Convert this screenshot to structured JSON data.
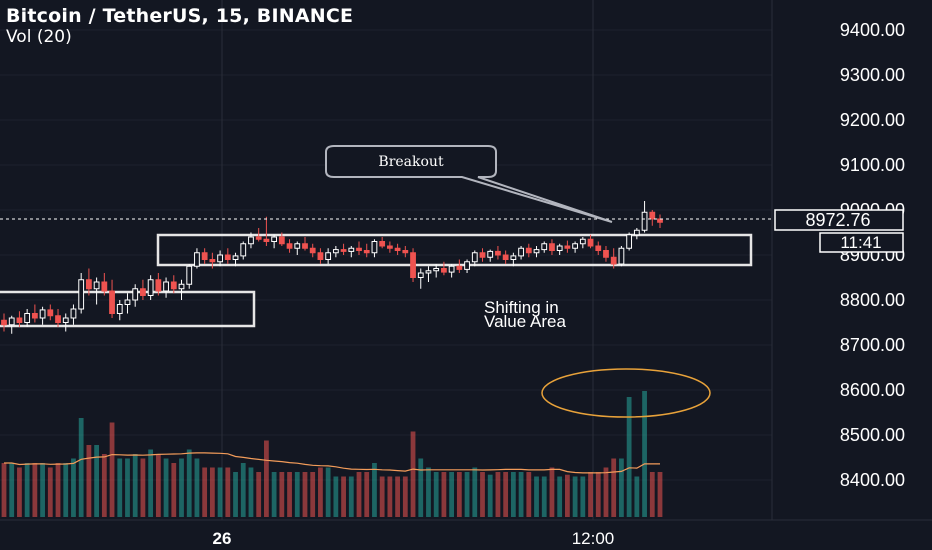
{
  "header": {
    "symbol_title": "Bitcoin / TetherUS, 15, BINANCE",
    "volume_label": "Vol (20)"
  },
  "price_axis": {
    "ticks": [
      "9400.00",
      "9300.00",
      "9200.00",
      "9100.00",
      "9000.00",
      "8900.00",
      "8800.00",
      "8700.00",
      "8600.00",
      "8500.00",
      "8400.00"
    ],
    "current_price": "8972.76",
    "countdown": "11:41"
  },
  "time_axis": {
    "ticks": [
      "26",
      "12:00"
    ]
  },
  "annotations": {
    "callout_text": "Breakout",
    "note_text": [
      "Shifting in",
      "Value Area"
    ]
  },
  "colors": {
    "background": "#131722",
    "bull": "#ffffff",
    "bear": "#ef5350",
    "vol_bull": "#26a69a",
    "vol_bear": "#ef5350",
    "ma_line": "#f39c5a",
    "ellipse": "#e8a23a"
  },
  "chart_data": {
    "type": "candlestick",
    "ylim": [
      8310,
      9440
    ],
    "current_price": 8972.76,
    "candles_ohlc": [
      [
        8755,
        8770,
        8730,
        8745
      ],
      [
        8745,
        8765,
        8725,
        8760
      ],
      [
        8760,
        8775,
        8740,
        8750
      ],
      [
        8750,
        8780,
        8740,
        8770
      ],
      [
        8770,
        8790,
        8750,
        8760
      ],
      [
        8760,
        8785,
        8745,
        8778
      ],
      [
        8778,
        8790,
        8755,
        8765
      ],
      [
        8765,
        8780,
        8740,
        8750
      ],
      [
        8750,
        8770,
        8730,
        8760
      ],
      [
        8760,
        8790,
        8745,
        8780
      ],
      [
        8780,
        8860,
        8770,
        8845
      ],
      [
        8845,
        8870,
        8810,
        8825
      ],
      [
        8825,
        8850,
        8790,
        8840
      ],
      [
        8840,
        8860,
        8810,
        8820
      ],
      [
        8820,
        8845,
        8760,
        8770
      ],
      [
        8770,
        8800,
        8755,
        8790
      ],
      [
        8790,
        8815,
        8770,
        8800
      ],
      [
        8800,
        8835,
        8785,
        8825
      ],
      [
        8825,
        8845,
        8800,
        8810
      ],
      [
        8810,
        8855,
        8800,
        8845
      ],
      [
        8845,
        8860,
        8810,
        8820
      ],
      [
        8820,
        8850,
        8805,
        8840
      ],
      [
        8840,
        8855,
        8815,
        8825
      ],
      [
        8825,
        8845,
        8800,
        8835
      ],
      [
        8835,
        8880,
        8825,
        8875
      ],
      [
        8875,
        8915,
        8870,
        8905
      ],
      [
        8905,
        8915,
        8880,
        8890
      ],
      [
        8890,
        8905,
        8870,
        8885
      ],
      [
        8885,
        8910,
        8875,
        8900
      ],
      [
        8900,
        8915,
        8880,
        8890
      ],
      [
        8890,
        8905,
        8875,
        8898
      ],
      [
        8898,
        8930,
        8890,
        8925
      ],
      [
        8925,
        8950,
        8915,
        8940
      ],
      [
        8940,
        8960,
        8930,
        8935
      ],
      [
        8935,
        8985,
        8920,
        8930
      ],
      [
        8930,
        8945,
        8915,
        8940
      ],
      [
        8940,
        8950,
        8920,
        8925
      ],
      [
        8925,
        8935,
        8905,
        8915
      ],
      [
        8915,
        8930,
        8900,
        8925
      ],
      [
        8925,
        8940,
        8910,
        8915
      ],
      [
        8915,
        8925,
        8895,
        8905
      ],
      [
        8905,
        8915,
        8880,
        8890
      ],
      [
        8890,
        8915,
        8880,
        8905
      ],
      [
        8905,
        8920,
        8895,
        8912
      ],
      [
        8912,
        8925,
        8900,
        8908
      ],
      [
        8908,
        8920,
        8895,
        8915
      ],
      [
        8915,
        8930,
        8900,
        8910
      ],
      [
        8910,
        8925,
        8895,
        8905
      ],
      [
        8905,
        8935,
        8895,
        8930
      ],
      [
        8930,
        8940,
        8915,
        8920
      ],
      [
        8920,
        8930,
        8905,
        8915
      ],
      [
        8915,
        8925,
        8900,
        8910
      ],
      [
        8910,
        8920,
        8895,
        8905
      ],
      [
        8905,
        8915,
        8840,
        8850
      ],
      [
        8850,
        8870,
        8825,
        8860
      ],
      [
        8860,
        8875,
        8840,
        8865
      ],
      [
        8865,
        8880,
        8850,
        8870
      ],
      [
        8870,
        8885,
        8855,
        8862
      ],
      [
        8862,
        8880,
        8850,
        8875
      ],
      [
        8875,
        8890,
        8860,
        8868
      ],
      [
        8868,
        8890,
        8860,
        8885
      ],
      [
        8885,
        8910,
        8875,
        8905
      ],
      [
        8905,
        8915,
        8885,
        8895
      ],
      [
        8895,
        8912,
        8885,
        8908
      ],
      [
        8908,
        8920,
        8890,
        8900
      ],
      [
        8900,
        8910,
        8880,
        8890
      ],
      [
        8890,
        8905,
        8875,
        8898
      ],
      [
        8898,
        8920,
        8890,
        8915
      ],
      [
        8915,
        8925,
        8895,
        8905
      ],
      [
        8905,
        8920,
        8895,
        8912
      ],
      [
        8912,
        8930,
        8905,
        8925
      ],
      [
        8925,
        8935,
        8900,
        8910
      ],
      [
        8910,
        8925,
        8900,
        8920
      ],
      [
        8920,
        8932,
        8905,
        8915
      ],
      [
        8915,
        8930,
        8905,
        8925
      ],
      [
        8925,
        8940,
        8915,
        8935
      ],
      [
        8935,
        8945,
        8915,
        8920
      ],
      [
        8920,
        8930,
        8900,
        8910
      ],
      [
        8910,
        8920,
        8885,
        8895
      ],
      [
        8895,
        8915,
        8870,
        8880
      ],
      [
        8880,
        8920,
        8875,
        8915
      ],
      [
        8915,
        8950,
        8910,
        8945
      ],
      [
        8945,
        8960,
        8935,
        8955
      ],
      [
        8955,
        9020,
        8950,
        8995
      ],
      [
        8995,
        9000,
        8965,
        8980
      ],
      [
        8980,
        8990,
        8960,
        8972.76
      ]
    ],
    "volume_ma_series_label": "Vol (20)"
  }
}
